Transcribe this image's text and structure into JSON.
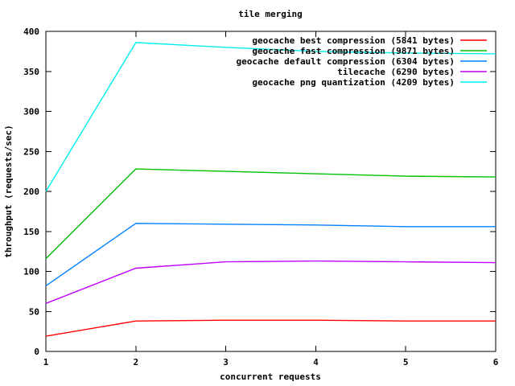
{
  "window": {
    "background_color": "#ffffff",
    "text_color": "#000000",
    "axis_color": "#000000"
  },
  "chart_data": {
    "type": "line",
    "title": "tile merging",
    "xlabel": "concurrent requests",
    "ylabel": "throughput (requests/sec)",
    "x": [
      1,
      2,
      3,
      4,
      5,
      6
    ],
    "xlim": [
      1,
      6
    ],
    "ylim": [
      0,
      400
    ],
    "xtick_step": 1,
    "ytick_step": 50,
    "xticks": [
      "1",
      "2",
      "3",
      "4",
      "5",
      "6"
    ],
    "yticks": [
      "0",
      "50",
      "100",
      "150",
      "200",
      "250",
      "300",
      "350",
      "400"
    ],
    "grid": false,
    "legend_position": "top-right-inside",
    "series": [
      {
        "name": "geocache best compression (5841 bytes)",
        "color": "#ff0000",
        "values": [
          19,
          38,
          39,
          39,
          38,
          38
        ]
      },
      {
        "name": "geocache fast compression (9871 bytes)",
        "color": "#00c000",
        "values": [
          116,
          228,
          225,
          222,
          219,
          218
        ]
      },
      {
        "name": "geocache default compression (6304 bytes)",
        "color": "#0080ff",
        "values": [
          82,
          160,
          159,
          158,
          156,
          156
        ]
      },
      {
        "name": "tilecache (6290 bytes)",
        "color": "#c000ff",
        "values": [
          60,
          104,
          112,
          113,
          112,
          111
        ]
      },
      {
        "name": "geocache png quantization (4209 bytes)",
        "color": "#00eeee",
        "values": [
          200,
          386,
          380,
          375,
          373,
          372
        ]
      }
    ]
  }
}
